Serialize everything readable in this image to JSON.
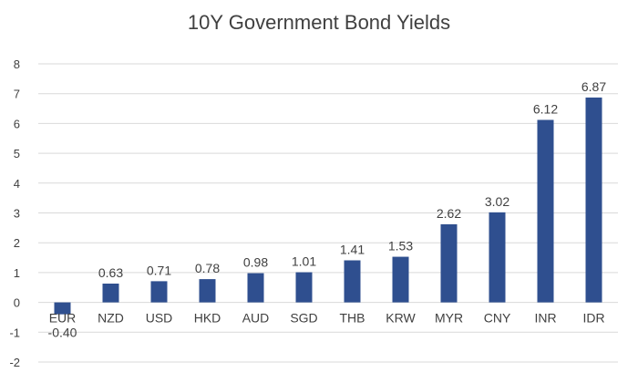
{
  "chart_data": {
    "type": "bar",
    "title": "10Y Government Bond Yields",
    "xlabel": "",
    "ylabel": "",
    "categories": [
      "EUR",
      "NZD",
      "USD",
      "HKD",
      "AUD",
      "SGD",
      "THB",
      "KRW",
      "MYR",
      "CNY",
      "INR",
      "IDR"
    ],
    "values": [
      -0.4,
      0.63,
      0.71,
      0.78,
      0.98,
      1.01,
      1.41,
      1.53,
      2.62,
      3.02,
      6.12,
      6.87
    ],
    "data_labels": [
      "-0.40",
      "0.63",
      "0.71",
      "0.78",
      "0.98",
      "1.01",
      "1.41",
      "1.53",
      "2.62",
      "3.02",
      "6.12",
      "6.87"
    ],
    "ylim": [
      -2,
      8
    ],
    "yticks": [
      -2,
      -1,
      0,
      1,
      2,
      3,
      4,
      5,
      6,
      7,
      8
    ],
    "grid": true,
    "legend": "none",
    "bar_color": "#2f4f8f"
  }
}
